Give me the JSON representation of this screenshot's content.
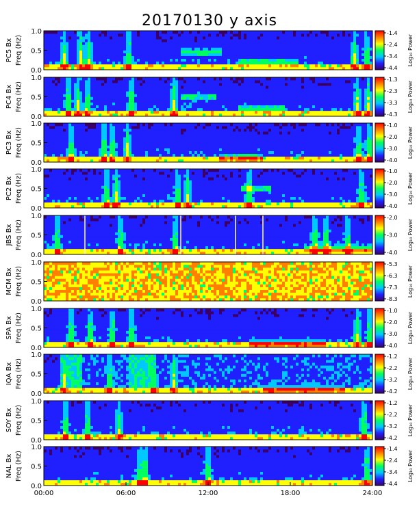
{
  "chart_data": {
    "type": "heatmap",
    "title": "20170130 y axis",
    "x_ticks": [
      "00:00",
      "06:00",
      "12:00",
      "18:00",
      "24:00"
    ],
    "x_range_hours": [
      0,
      24
    ],
    "y_ticks": [
      "0.0",
      "0.5",
      "1.0"
    ],
    "y_range_hz": [
      0,
      1
    ],
    "colorbar_label": "Log₁₀ Power",
    "colormap": [
      "#000000",
      "#3a0068",
      "#2020ff",
      "#00c8ff",
      "#00ff60",
      "#ffff00",
      "#ff8000",
      "#ff0000"
    ],
    "panels": [
      {
        "station_label": "PC5 Bx",
        "freq_label": "Freq (Hz)",
        "cbar_ticks": [
          "-1.4",
          "-2.4",
          "-3.4",
          "-4.4"
        ],
        "hot_hours": [
          1.5,
          2.7,
          3.3,
          6.2,
          22.7,
          23.6
        ],
        "features": [
          {
            "start_h": 14.2,
            "end_h": 18.5,
            "freq_hz": 0.2
          },
          {
            "start_h": 10.0,
            "end_h": 13.0,
            "freq_hz": 0.45
          }
        ]
      },
      {
        "station_label": "PC4 Bx",
        "freq_label": "Freq (Hz)",
        "cbar_ticks": [
          "-1.3",
          "-2.3",
          "-3.3",
          "-4.3"
        ],
        "hot_hours": [
          1.8,
          2.5,
          3.2,
          6.4,
          9.5,
          22.9,
          23.7
        ],
        "features": [
          {
            "start_h": 14.2,
            "end_h": 17.5,
            "freq_hz": 0.2
          },
          {
            "start_h": 10.0,
            "end_h": 12.5,
            "freq_hz": 0.5
          }
        ]
      },
      {
        "station_label": "PC3 Bx",
        "freq_label": "Freq (Hz)",
        "cbar_ticks": [
          "-1.0",
          "-2.0",
          "-3.0",
          "-4.0"
        ],
        "hot_hours": [
          2.0,
          4.4,
          5.0,
          6.1,
          23.0,
          23.8
        ],
        "features": [
          {
            "start_h": 12.8,
            "end_h": 16.0,
            "freq_hz": 0.12
          }
        ]
      },
      {
        "station_label": "PC2 Bx",
        "freq_label": "Freq (Hz)",
        "cbar_ticks": [
          "-1.0",
          "-2.0",
          "-3.0",
          "-4.0"
        ],
        "hot_hours": [
          4.6,
          5.3,
          9.8,
          10.5,
          15.0,
          23.2
        ],
        "features": [
          {
            "start_h": 14.5,
            "end_h": 16.5,
            "freq_hz": 0.5
          }
        ]
      },
      {
        "station_label": "JBS Bx",
        "freq_label": "Freq (Hz)",
        "cbar_ticks": [
          "-2.0",
          "-3.0",
          "-4.0"
        ],
        "hot_hours": [
          1.0,
          5.6,
          9.6,
          19.8,
          20.6,
          22.2
        ],
        "features": [
          {
            "start_h": 19.0,
            "end_h": 24.0,
            "freq_hz": 0.15
          }
        ]
      },
      {
        "station_label": "MCM Bx",
        "freq_label": "Freq (Hz)",
        "cbar_ticks": [
          "-5.3",
          "-6.3",
          "-7.3",
          "-8.3"
        ],
        "hot_hours": [],
        "features": []
      },
      {
        "station_label": "SPA Bx",
        "freq_label": "Freq (Hz)",
        "cbar_ticks": [
          "-1.0",
          "-2.0",
          "-3.0",
          "-4.0"
        ],
        "hot_hours": [
          2.0,
          3.4,
          5.0,
          6.4,
          22.9,
          23.8
        ],
        "features": [
          {
            "start_h": 15.0,
            "end_h": 20.5,
            "freq_hz": 0.1
          }
        ]
      },
      {
        "station_label": "IQA Bx",
        "freq_label": "Freq (Hz)",
        "cbar_ticks": [
          "-1.2",
          "-2.2",
          "-3.2",
          "-4.2"
        ],
        "hot_hours": [
          1.5,
          4.8,
          8.0,
          9.5
        ],
        "features": [
          {
            "start_h": 16.0,
            "end_h": 22.0,
            "freq_hz": 0.1
          }
        ]
      },
      {
        "station_label": "SOY Bx",
        "freq_label": "Freq (Hz)",
        "cbar_ticks": [
          "-1.2",
          "-2.2",
          "-3.2",
          "-4.2"
        ],
        "hot_hours": [
          1.6,
          3.2,
          5.5,
          23.4
        ],
        "features": []
      },
      {
        "station_label": "NAL Bx",
        "freq_label": "Freq (Hz)",
        "cbar_ticks": [
          "-1.4",
          "-2.4",
          "-3.4",
          "-4.4"
        ],
        "hot_hours": [
          7.0,
          7.4,
          12.0,
          23.6
        ],
        "features": []
      }
    ]
  }
}
